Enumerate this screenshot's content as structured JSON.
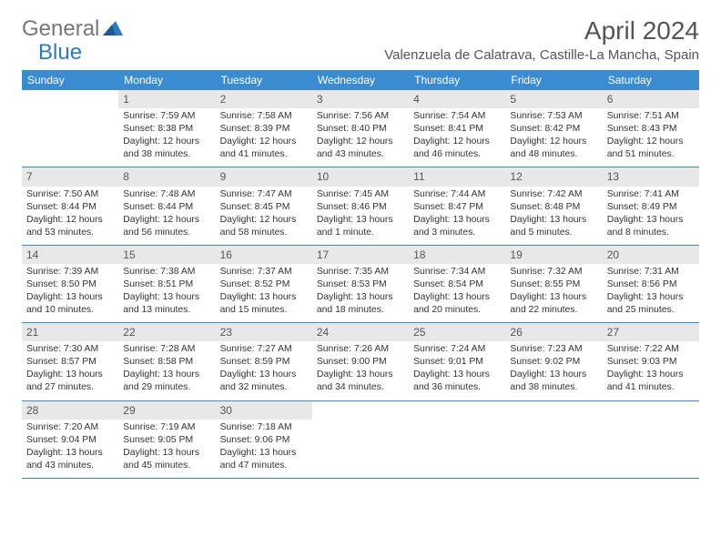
{
  "logo": {
    "text_gray": "General",
    "text_blue": "Blue"
  },
  "title": "April 2024",
  "location": "Valenzuela de Calatrava, Castille-La Mancha, Spain",
  "weekdays": [
    "Sunday",
    "Monday",
    "Tuesday",
    "Wednesday",
    "Thursday",
    "Friday",
    "Saturday"
  ],
  "colors": {
    "header_bg": "#3a8bd0",
    "daynum_bg": "#e8e8e8",
    "border": "#3a8bd0",
    "text": "#333333",
    "title": "#555555",
    "logo_gray": "#777777",
    "logo_blue": "#2e7cc0",
    "background": "#ffffff"
  },
  "weeks": [
    [
      {
        "n": "",
        "sunrise": "",
        "sunset": "",
        "daylight": ""
      },
      {
        "n": "1",
        "sunrise": "Sunrise: 7:59 AM",
        "sunset": "Sunset: 8:38 PM",
        "daylight": "Daylight: 12 hours and 38 minutes."
      },
      {
        "n": "2",
        "sunrise": "Sunrise: 7:58 AM",
        "sunset": "Sunset: 8:39 PM",
        "daylight": "Daylight: 12 hours and 41 minutes."
      },
      {
        "n": "3",
        "sunrise": "Sunrise: 7:56 AM",
        "sunset": "Sunset: 8:40 PM",
        "daylight": "Daylight: 12 hours and 43 minutes."
      },
      {
        "n": "4",
        "sunrise": "Sunrise: 7:54 AM",
        "sunset": "Sunset: 8:41 PM",
        "daylight": "Daylight: 12 hours and 46 minutes."
      },
      {
        "n": "5",
        "sunrise": "Sunrise: 7:53 AM",
        "sunset": "Sunset: 8:42 PM",
        "daylight": "Daylight: 12 hours and 48 minutes."
      },
      {
        "n": "6",
        "sunrise": "Sunrise: 7:51 AM",
        "sunset": "Sunset: 8:43 PM",
        "daylight": "Daylight: 12 hours and 51 minutes."
      }
    ],
    [
      {
        "n": "7",
        "sunrise": "Sunrise: 7:50 AM",
        "sunset": "Sunset: 8:44 PM",
        "daylight": "Daylight: 12 hours and 53 minutes."
      },
      {
        "n": "8",
        "sunrise": "Sunrise: 7:48 AM",
        "sunset": "Sunset: 8:44 PM",
        "daylight": "Daylight: 12 hours and 56 minutes."
      },
      {
        "n": "9",
        "sunrise": "Sunrise: 7:47 AM",
        "sunset": "Sunset: 8:45 PM",
        "daylight": "Daylight: 12 hours and 58 minutes."
      },
      {
        "n": "10",
        "sunrise": "Sunrise: 7:45 AM",
        "sunset": "Sunset: 8:46 PM",
        "daylight": "Daylight: 13 hours and 1 minute."
      },
      {
        "n": "11",
        "sunrise": "Sunrise: 7:44 AM",
        "sunset": "Sunset: 8:47 PM",
        "daylight": "Daylight: 13 hours and 3 minutes."
      },
      {
        "n": "12",
        "sunrise": "Sunrise: 7:42 AM",
        "sunset": "Sunset: 8:48 PM",
        "daylight": "Daylight: 13 hours and 5 minutes."
      },
      {
        "n": "13",
        "sunrise": "Sunrise: 7:41 AM",
        "sunset": "Sunset: 8:49 PM",
        "daylight": "Daylight: 13 hours and 8 minutes."
      }
    ],
    [
      {
        "n": "14",
        "sunrise": "Sunrise: 7:39 AM",
        "sunset": "Sunset: 8:50 PM",
        "daylight": "Daylight: 13 hours and 10 minutes."
      },
      {
        "n": "15",
        "sunrise": "Sunrise: 7:38 AM",
        "sunset": "Sunset: 8:51 PM",
        "daylight": "Daylight: 13 hours and 13 minutes."
      },
      {
        "n": "16",
        "sunrise": "Sunrise: 7:37 AM",
        "sunset": "Sunset: 8:52 PM",
        "daylight": "Daylight: 13 hours and 15 minutes."
      },
      {
        "n": "17",
        "sunrise": "Sunrise: 7:35 AM",
        "sunset": "Sunset: 8:53 PM",
        "daylight": "Daylight: 13 hours and 18 minutes."
      },
      {
        "n": "18",
        "sunrise": "Sunrise: 7:34 AM",
        "sunset": "Sunset: 8:54 PM",
        "daylight": "Daylight: 13 hours and 20 minutes."
      },
      {
        "n": "19",
        "sunrise": "Sunrise: 7:32 AM",
        "sunset": "Sunset: 8:55 PM",
        "daylight": "Daylight: 13 hours and 22 minutes."
      },
      {
        "n": "20",
        "sunrise": "Sunrise: 7:31 AM",
        "sunset": "Sunset: 8:56 PM",
        "daylight": "Daylight: 13 hours and 25 minutes."
      }
    ],
    [
      {
        "n": "21",
        "sunrise": "Sunrise: 7:30 AM",
        "sunset": "Sunset: 8:57 PM",
        "daylight": "Daylight: 13 hours and 27 minutes."
      },
      {
        "n": "22",
        "sunrise": "Sunrise: 7:28 AM",
        "sunset": "Sunset: 8:58 PM",
        "daylight": "Daylight: 13 hours and 29 minutes."
      },
      {
        "n": "23",
        "sunrise": "Sunrise: 7:27 AM",
        "sunset": "Sunset: 8:59 PM",
        "daylight": "Daylight: 13 hours and 32 minutes."
      },
      {
        "n": "24",
        "sunrise": "Sunrise: 7:26 AM",
        "sunset": "Sunset: 9:00 PM",
        "daylight": "Daylight: 13 hours and 34 minutes."
      },
      {
        "n": "25",
        "sunrise": "Sunrise: 7:24 AM",
        "sunset": "Sunset: 9:01 PM",
        "daylight": "Daylight: 13 hours and 36 minutes."
      },
      {
        "n": "26",
        "sunrise": "Sunrise: 7:23 AM",
        "sunset": "Sunset: 9:02 PM",
        "daylight": "Daylight: 13 hours and 38 minutes."
      },
      {
        "n": "27",
        "sunrise": "Sunrise: 7:22 AM",
        "sunset": "Sunset: 9:03 PM",
        "daylight": "Daylight: 13 hours and 41 minutes."
      }
    ],
    [
      {
        "n": "28",
        "sunrise": "Sunrise: 7:20 AM",
        "sunset": "Sunset: 9:04 PM",
        "daylight": "Daylight: 13 hours and 43 minutes."
      },
      {
        "n": "29",
        "sunrise": "Sunrise: 7:19 AM",
        "sunset": "Sunset: 9:05 PM",
        "daylight": "Daylight: 13 hours and 45 minutes."
      },
      {
        "n": "30",
        "sunrise": "Sunrise: 7:18 AM",
        "sunset": "Sunset: 9:06 PM",
        "daylight": "Daylight: 13 hours and 47 minutes."
      },
      {
        "n": "",
        "sunrise": "",
        "sunset": "",
        "daylight": ""
      },
      {
        "n": "",
        "sunrise": "",
        "sunset": "",
        "daylight": ""
      },
      {
        "n": "",
        "sunrise": "",
        "sunset": "",
        "daylight": ""
      },
      {
        "n": "",
        "sunrise": "",
        "sunset": "",
        "daylight": ""
      }
    ]
  ]
}
